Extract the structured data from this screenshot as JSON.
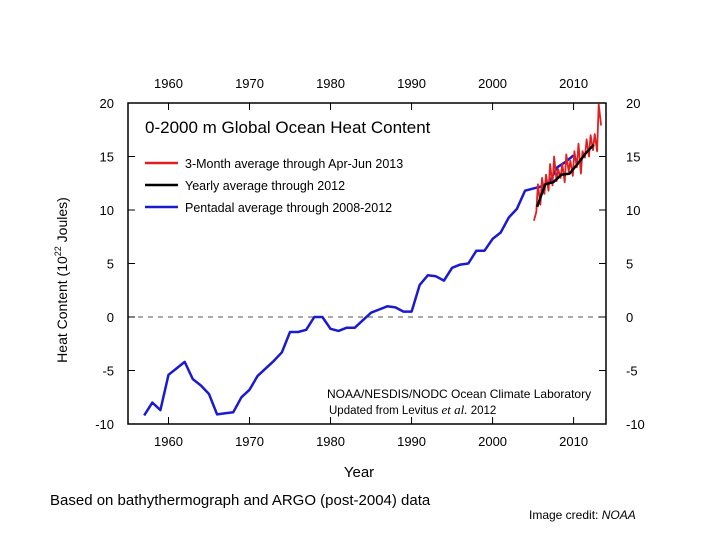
{
  "chart_data": {
    "type": "line",
    "title": "0-2000 m Global Ocean Heat Content",
    "xlabel": "Year",
    "ylabel_prefix": "Heat Content (10",
    "ylabel_exp": "22",
    "ylabel_suffix": " Joules)",
    "xlim": [
      1955,
      2014
    ],
    "ylim": [
      -10,
      20
    ],
    "xticks": [
      1960,
      1970,
      1980,
      1990,
      2000,
      2010
    ],
    "yticks": [
      -10,
      -5,
      0,
      5,
      10,
      15,
      20
    ],
    "zero_line": true,
    "legend_position": "top-left",
    "series": [
      {
        "name": "3-Month average through Apr-Jun 2013",
        "color": "#e02020",
        "x": [
          2005.1,
          2005.4,
          2005.6,
          2005.9,
          2006.1,
          2006.4,
          2006.6,
          2006.9,
          2007.1,
          2007.4,
          2007.6,
          2007.9,
          2008.1,
          2008.4,
          2008.6,
          2008.9,
          2009.1,
          2009.4,
          2009.6,
          2009.9,
          2010.1,
          2010.4,
          2010.6,
          2010.9,
          2011.1,
          2011.4,
          2011.6,
          2011.9,
          2012.1,
          2012.4,
          2012.6,
          2012.9,
          2013.1,
          2013.4
        ],
        "y": [
          9.0,
          9.8,
          12.4,
          10.5,
          13.0,
          11.5,
          13.3,
          11.8,
          14.3,
          12.3,
          15.0,
          12.7,
          13.8,
          13.0,
          14.3,
          12.6,
          15.2,
          13.6,
          14.6,
          13.2,
          15.5,
          14.0,
          16.2,
          13.4,
          15.5,
          14.9,
          16.6,
          15.0,
          17.0,
          15.6,
          17.1,
          15.5,
          19.9,
          17.9
        ]
      },
      {
        "name": "Yearly average through 2012",
        "color": "#000000",
        "x": [
          2005.5,
          2006.5,
          2007.5,
          2008.5,
          2009.5,
          2010.5,
          2011.5,
          2012.5
        ],
        "y": [
          10.3,
          12.4,
          12.6,
          13.3,
          13.4,
          14.3,
          15.3,
          16.1
        ]
      },
      {
        "name": "Pentadal average through 2008-2012",
        "color": "#1a1ad0",
        "x": [
          1957,
          1958,
          1959,
          1960,
          1961,
          1962,
          1963,
          1964,
          1965,
          1966,
          1967,
          1968,
          1969,
          1970,
          1971,
          1972,
          1973,
          1974,
          1975,
          1976,
          1977,
          1978,
          1979,
          1980,
          1981,
          1982,
          1983,
          1984,
          1985,
          1986,
          1987,
          1988,
          1989,
          1990,
          1991,
          1992,
          1993,
          1994,
          1995,
          1996,
          1997,
          1998,
          1999,
          2000,
          2001,
          2002,
          2003,
          2004,
          2005,
          2006,
          2007,
          2008,
          2009,
          2010
        ],
        "y": [
          -9.2,
          -8.0,
          -8.7,
          -5.4,
          -4.8,
          -4.2,
          -5.8,
          -6.4,
          -7.2,
          -9.1,
          -9.0,
          -8.9,
          -7.5,
          -6.8,
          -5.5,
          -4.8,
          -4.1,
          -3.3,
          -1.4,
          -1.4,
          -1.2,
          0.0,
          0.0,
          -1.1,
          -1.3,
          -1.0,
          -1.0,
          -0.3,
          0.4,
          0.7,
          1.0,
          0.9,
          0.5,
          0.5,
          3.0,
          3.9,
          3.8,
          3.4,
          4.6,
          4.9,
          5.0,
          6.2,
          6.2,
          7.3,
          7.9,
          9.3,
          10.1,
          11.8,
          12.0,
          12.2,
          12.6,
          14.0,
          14.5,
          15.1
        ]
      }
    ],
    "annotation_line1": "NOAA/NESDIS/NODC Ocean Climate Laboratory",
    "annotation_line2_prefix": "Updated from Levitus ",
    "annotation_line2_italic": "et al.",
    "annotation_line2_suffix": " 2012"
  },
  "captions": {
    "source_note": "Based on bathythermograph and ARGO (post-2004) data",
    "credit_prefix": "Image credit: ",
    "credit_name": "NOAA"
  }
}
